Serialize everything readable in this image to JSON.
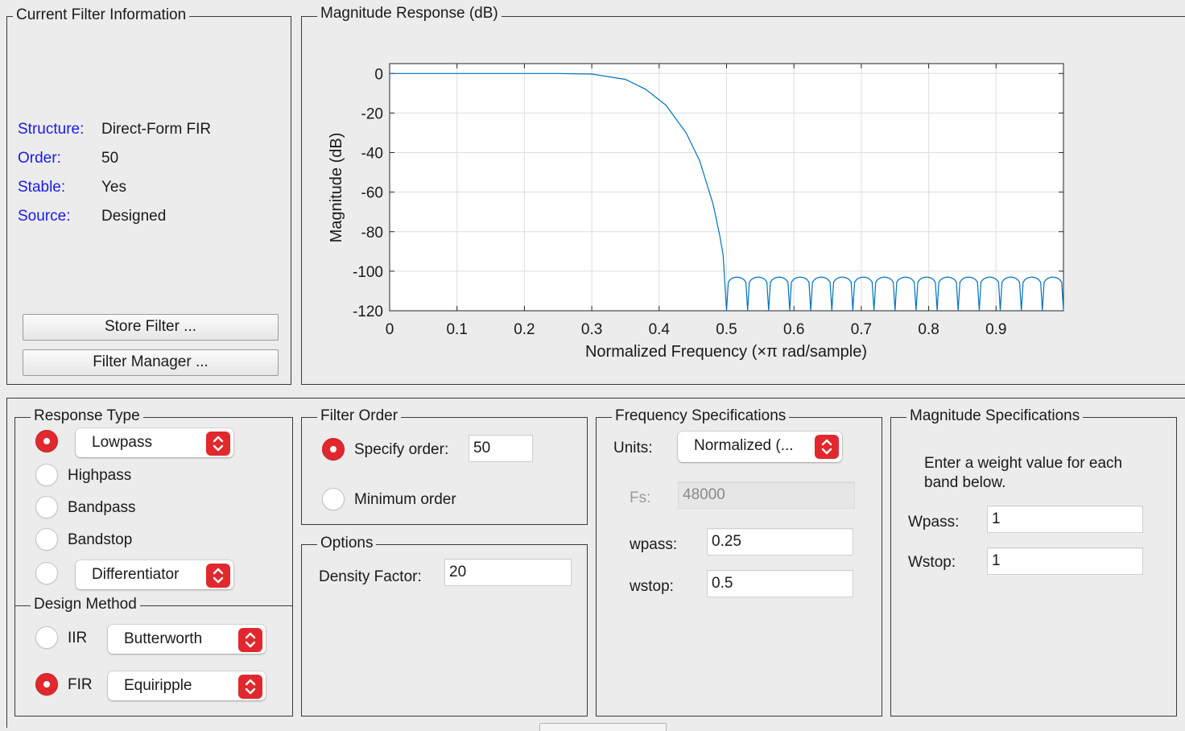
{
  "current_filter": {
    "title": "Current Filter Information",
    "rows": [
      {
        "label": "Structure:",
        "value": "Direct-Form FIR"
      },
      {
        "label": "Order:",
        "value": "50"
      },
      {
        "label": "Stable:",
        "value": "Yes"
      },
      {
        "label": "Source:",
        "value": "Designed"
      }
    ],
    "store_button": "Store Filter ...",
    "manager_button": "Filter Manager ..."
  },
  "plot": {
    "title": "Magnitude Response (dB)"
  },
  "chart_data": {
    "type": "line",
    "xlabel": "Normalized Frequency (×π rad/sample)",
    "ylabel": "Magnitude (dB)",
    "xlim": [
      0,
      1
    ],
    "ylim": [
      -120,
      5
    ],
    "xticks": [
      0,
      0.1,
      0.2,
      0.3,
      0.4,
      0.5,
      0.6,
      0.7,
      0.8,
      0.9
    ],
    "yticks": [
      0,
      -20,
      -40,
      -60,
      -80,
      -100,
      -120
    ],
    "grid": true,
    "line_color": "#0072bd",
    "series": [
      {
        "passband": {
          "x": [
            0,
            0.25,
            0.3,
            0.35,
            0.38,
            0.41,
            0.44,
            0.46,
            0.48,
            0.49,
            0.495,
            0.5
          ],
          "y": [
            0,
            0,
            -0.3,
            -3,
            -8,
            -16,
            -30,
            -44,
            -66,
            -82,
            -92,
            -120
          ]
        },
        "stopband": {
          "start": 0.5,
          "end": 1.0,
          "lobes": 16,
          "peak_db": -103,
          "null_db": -120
        }
      }
    ]
  },
  "response_type": {
    "title": "Response Type",
    "options": [
      {
        "label": "Lowpass",
        "selected": true
      },
      {
        "label": "Highpass",
        "selected": false
      },
      {
        "label": "Bandpass",
        "selected": false
      },
      {
        "label": "Bandstop",
        "selected": false
      },
      {
        "label": "Differentiator",
        "selected": false
      }
    ]
  },
  "design_method": {
    "title": "Design Method",
    "options": [
      {
        "label": "IIR",
        "method": "Butterworth",
        "selected": false
      },
      {
        "label": "FIR",
        "method": "Equiripple",
        "selected": true
      }
    ]
  },
  "filter_order": {
    "title": "Filter Order",
    "specify_label": "Specify order:",
    "specify_value": "50",
    "minimum_label": "Minimum order"
  },
  "options": {
    "title": "Options",
    "density_label": "Density Factor:",
    "density_value": "20"
  },
  "frequency_specs": {
    "title": "Frequency Specifications",
    "units_label": "Units:",
    "units_value": "Normalized (...",
    "fs_label": "Fs:",
    "fs_value": "48000",
    "wpass_label": "wpass:",
    "wpass_value": "0.25",
    "wstop_label": "wstop:",
    "wstop_value": "0.5"
  },
  "magnitude_specs": {
    "title": "Magnitude Specifications",
    "description": "Enter a weight value for each band below.",
    "wpass_label": "Wpass:",
    "wpass_value": "1",
    "wstop_label": "Wstop:",
    "wstop_value": "1"
  },
  "colors": {
    "accent": "#e0282e",
    "info_label": "#1a1ae6",
    "plot_line": "#0072bd"
  }
}
